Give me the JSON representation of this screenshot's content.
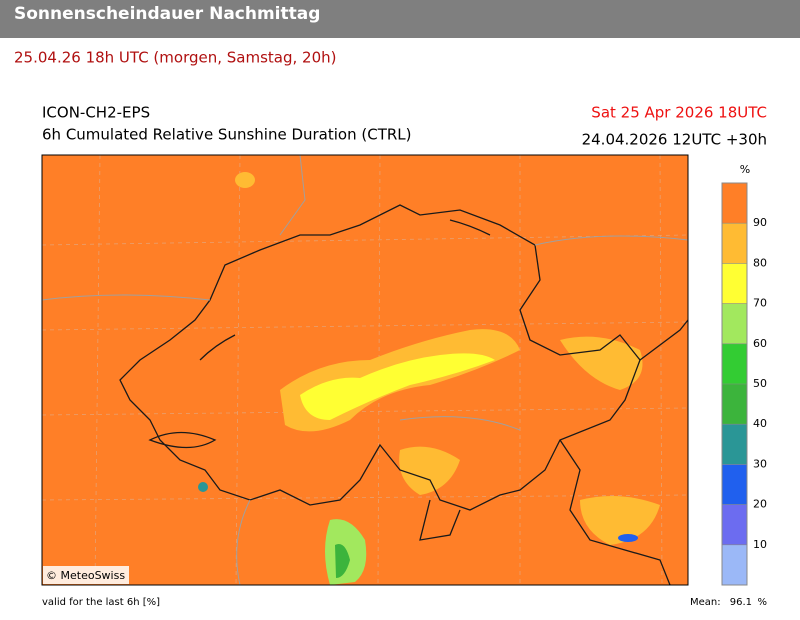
{
  "header": {
    "title": "Sonnenscheindauer Nachmittag",
    "subtitle": "25.04.26 18h UTC (morgen, Samstag, 20h)"
  },
  "map": {
    "model": "ICON-CH2-EPS",
    "product": "6h Cumulated Relative Sunshine Duration (CTRL)",
    "valid_time": "Sat 25 Apr 2026 18UTC",
    "run": "24.04.2026 12UTC +30h",
    "copyright": "© MeteoSwiss",
    "footnote": "valid for the last 6h [%]",
    "mean_label": "Mean:",
    "mean": 96.1,
    "mean_unit": "%"
  },
  "colorbar": {
    "unit": "%",
    "range": [
      0,
      100
    ],
    "ticks": [
      10,
      20,
      30,
      40,
      50,
      60,
      70,
      80,
      90
    ],
    "colors": [
      "#9bb8f7",
      "#6c6cf0",
      "#2060ee",
      "#2a9696",
      "#3cb43c",
      "#33cc33",
      "#a2e85e",
      "#ffff33",
      "#ffbb33",
      "#ff7f27"
    ]
  }
}
